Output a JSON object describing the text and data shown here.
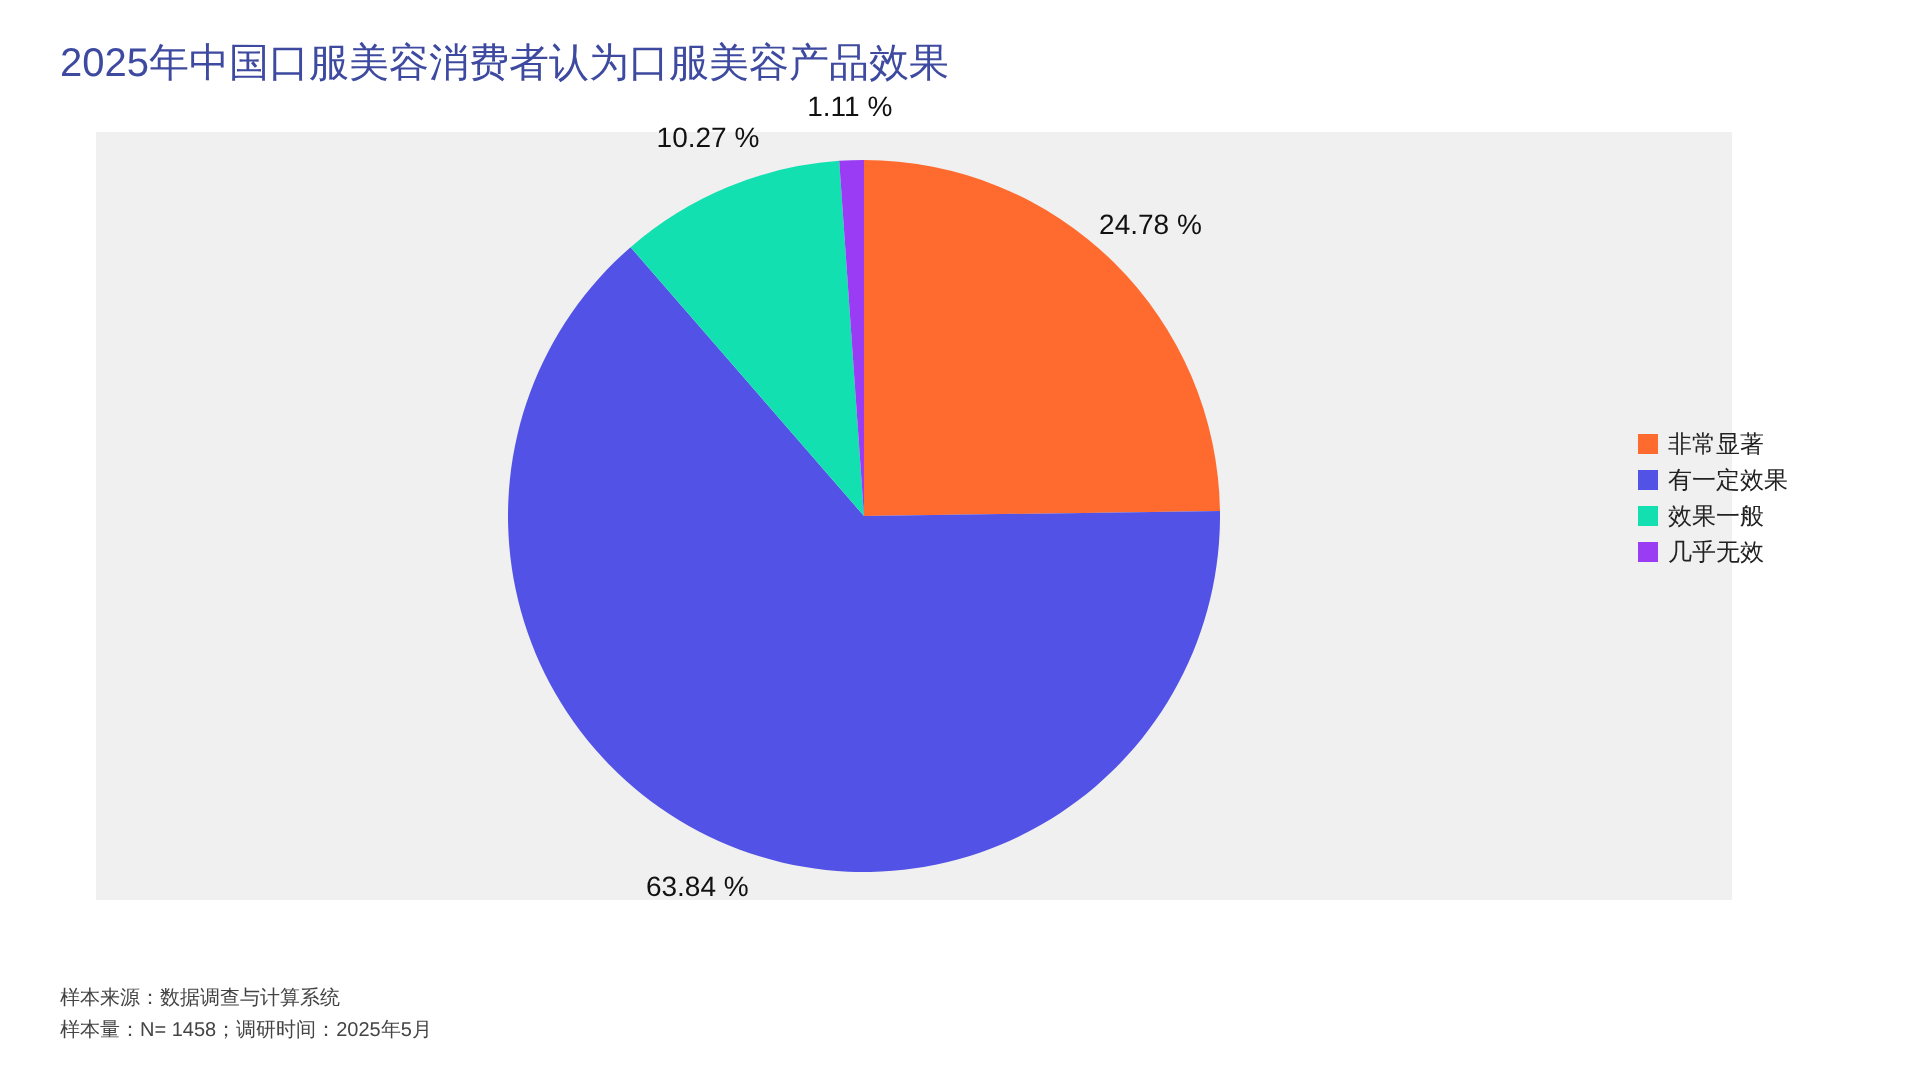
{
  "chart_data": {
    "type": "pie",
    "title": "2025年中国口服美容消费者认为口服美容产品效果",
    "categories": [
      "非常显著",
      "有一定效果",
      "效果一般",
      "几乎无效"
    ],
    "values": [
      24.78,
      63.84,
      10.27,
      1.11
    ],
    "colors": [
      "#ff6b2e",
      "#5252e6",
      "#12e0b0",
      "#9b3cf5"
    ],
    "value_labels": [
      "24.78 %",
      "63.84 %",
      "10.27 %",
      "1.11 %"
    ],
    "legend": "right",
    "annotations": [
      "样本来源：数据调查与计算系统",
      "样本量：N= 1458；调研时间：2025年5月"
    ]
  }
}
